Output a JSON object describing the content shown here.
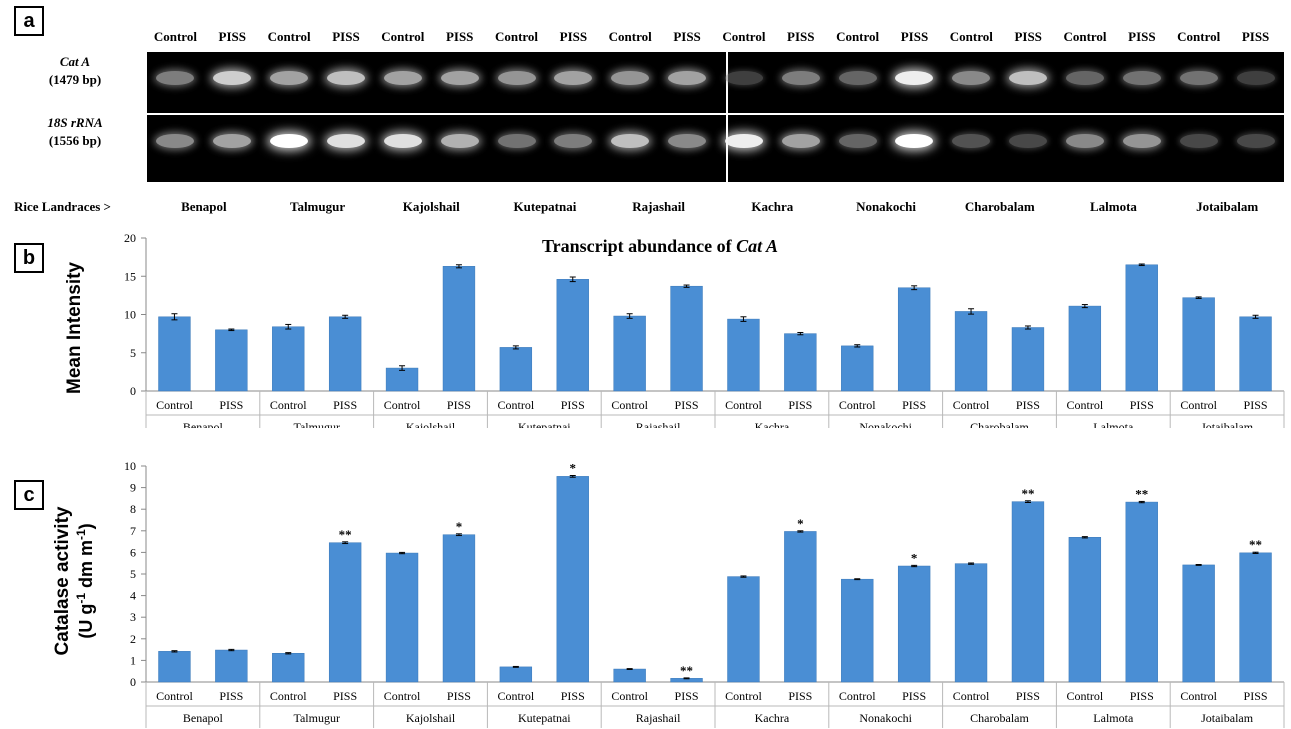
{
  "panel_a": {
    "label": "a",
    "column_headers": [
      "Control",
      "PISS",
      "Control",
      "PISS",
      "Control",
      "PISS",
      "Control",
      "PISS",
      "Control",
      "PISS",
      "Control",
      "PISS",
      "Control",
      "PISS",
      "Control",
      "PISS",
      "Control",
      "PISS",
      "Control",
      "PISS"
    ],
    "row1": {
      "gene": "Cat A",
      "size": "(1479 bp)"
    },
    "row2": {
      "gene": "18S rRNA",
      "size": "(1556 bp)"
    },
    "landrace_prefix": "Rice Landraces >",
    "landraces": [
      "Benapol",
      "Talmugur",
      "Kajolshail",
      "Kutepatnai",
      "Rajashail",
      "Kachra",
      "Nonakochi",
      "Charobalam",
      "Lalmota",
      "Jotaibalam"
    ]
  },
  "colors": {
    "bar": "#4a8ed4",
    "bar_edge": "#3a78b8",
    "error": "#000000",
    "axis": "#888888"
  },
  "chart_data": [
    {
      "panel_label": "b",
      "type": "bar",
      "title_prefix": "Transcript abundance of ",
      "title_italic": "Cat A",
      "ylabel": "Mean Intensity",
      "ylim": [
        0,
        20
      ],
      "yticks": [
        0,
        5,
        10,
        15,
        20
      ],
      "subcategories": [
        "Control",
        "PISS"
      ],
      "groups": [
        "Benapol",
        "Talmugur",
        "Kajolshail",
        "Kutepatnai",
        "Rajashail",
        "Kachra",
        "Nonakochi",
        "Charobalam",
        "Lalmota",
        "Jotaibalam"
      ],
      "values": [
        9.7,
        8.0,
        8.4,
        9.7,
        3.0,
        16.3,
        5.7,
        14.6,
        9.8,
        13.7,
        9.4,
        7.5,
        5.9,
        13.5,
        10.4,
        8.3,
        11.1,
        16.5,
        12.2,
        9.7
      ],
      "errors": [
        0.4,
        0.1,
        0.3,
        0.2,
        0.3,
        0.2,
        0.2,
        0.3,
        0.3,
        0.15,
        0.3,
        0.15,
        0.15,
        0.25,
        0.35,
        0.2,
        0.2,
        0.1,
        0.1,
        0.2
      ],
      "annotations": [
        "",
        "",
        "",
        "",
        "",
        "",
        "",
        "",
        "",
        "",
        "",
        "",
        "",
        "",
        "",
        "",
        "",
        "",
        "",
        ""
      ]
    },
    {
      "panel_label": "c",
      "type": "bar",
      "ylabel_line1": "Catalase activity",
      "ylabel_line2_a": "(U g",
      "ylabel_sup1": "-1",
      "ylabel_line2_b": " dm m",
      "ylabel_sup2": "-1",
      "ylabel_line2_c": ")",
      "ylim": [
        0,
        10
      ],
      "yticks": [
        0,
        1,
        2,
        3,
        4,
        5,
        6,
        7,
        8,
        9,
        10
      ],
      "subcategories": [
        "Control",
        "PISS"
      ],
      "groups": [
        "Benapol",
        "Talmugur",
        "Kajolshail",
        "Kutepatnai",
        "Rajashail",
        "Kachra",
        "Nonakochi",
        "Charobalam",
        "Lalmota",
        "Jotaibalam"
      ],
      "values": [
        1.42,
        1.48,
        1.33,
        6.45,
        5.97,
        6.82,
        0.7,
        9.52,
        0.6,
        0.17,
        4.88,
        6.97,
        4.76,
        5.37,
        5.48,
        8.35,
        6.7,
        8.33,
        5.42,
        5.98
      ],
      "errors": [
        0.03,
        0.03,
        0.03,
        0.04,
        0.03,
        0.04,
        0.02,
        0.04,
        0.02,
        0.02,
        0.03,
        0.03,
        0.02,
        0.03,
        0.03,
        0.04,
        0.03,
        0.03,
        0.02,
        0.03
      ],
      "annotations": [
        "",
        "",
        "",
        "**",
        "",
        "*",
        "",
        "*",
        "",
        "**",
        "",
        "*",
        "",
        "*",
        "",
        "**",
        "",
        "**",
        "",
        "**"
      ]
    }
  ]
}
